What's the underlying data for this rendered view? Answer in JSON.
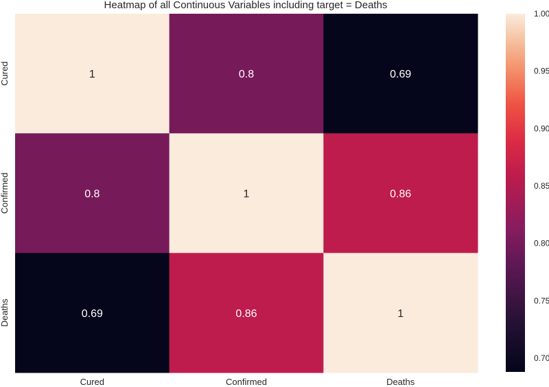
{
  "chart_data": {
    "type": "heatmap",
    "title": "Heatmap of all Continuous Variables including target = Deaths",
    "x_labels": [
      "Cured",
      "Confirmed",
      "Deaths"
    ],
    "y_labels": [
      "Cured",
      "Confirmed",
      "Deaths"
    ],
    "values": [
      [
        1,
        0.8,
        0.69
      ],
      [
        0.8,
        1,
        0.86
      ],
      [
        0.69,
        0.86,
        1
      ]
    ],
    "annotations": [
      [
        "1",
        "0.8",
        "0.69"
      ],
      [
        "0.8",
        "1",
        "0.86"
      ],
      [
        "0.69",
        "0.86",
        "1"
      ]
    ],
    "colorbar": {
      "min": 0.688,
      "max": 1.0,
      "ticks": [
        0.7,
        0.75,
        0.8,
        0.85,
        0.9,
        0.95,
        1.0
      ],
      "tick_labels": [
        "0.70",
        "0.75",
        "0.80",
        "0.85",
        "0.90",
        "0.95",
        "1.00"
      ],
      "colormap": "rocket"
    },
    "grid": false
  }
}
